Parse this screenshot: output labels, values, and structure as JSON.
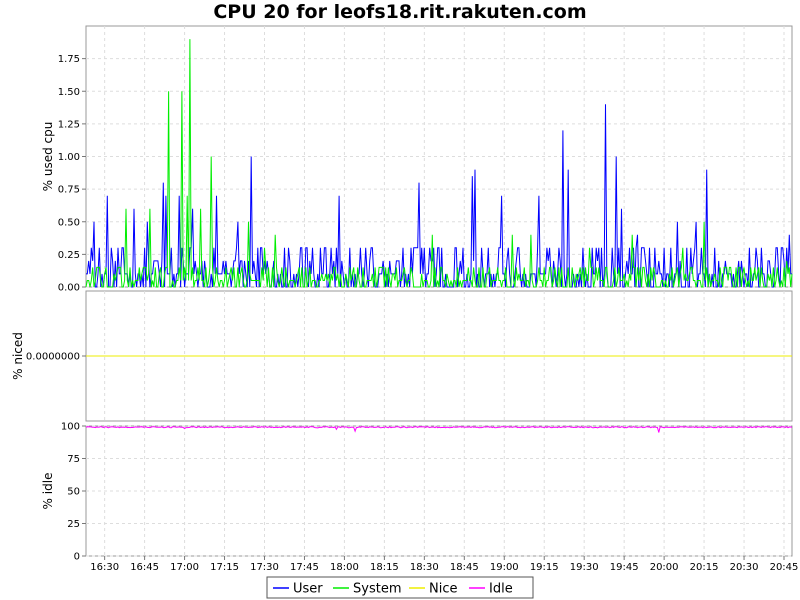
{
  "chart_data": {
    "type": "line",
    "title": "CPU 20 for leofs18.rit.rakuten.com",
    "x_range": [
      "16:23",
      "20:48"
    ],
    "x_ticks": [
      "16:30",
      "16:45",
      "17:00",
      "17:15",
      "17:30",
      "17:45",
      "18:00",
      "18:15",
      "18:30",
      "18:45",
      "19:00",
      "19:15",
      "19:30",
      "19:45",
      "20:00",
      "20:15",
      "20:30",
      "20:45"
    ],
    "grid": true,
    "legend_position": "bottom-center",
    "legend": [
      {
        "name": "User",
        "color": "#0000ff"
      },
      {
        "name": "System",
        "color": "#00ee00"
      },
      {
        "name": "Nice",
        "color": "#eeee00"
      },
      {
        "name": "Idle",
        "color": "#ff00ff"
      }
    ],
    "panels": [
      {
        "ylabel": "% used cpu",
        "ylim": [
          0,
          2.0
        ],
        "y_ticks": [
          "0.00",
          "0.25",
          "0.50",
          "0.75",
          "1.00",
          "1.25",
          "1.50",
          "1.75"
        ],
        "series": [
          {
            "name": "User",
            "color": "#0000ff",
            "baseline": 0.1,
            "peaks": [
              {
                "t": "16:24",
                "v": 0.2
              },
              {
                "t": "16:26",
                "v": 0.5
              },
              {
                "t": "16:31",
                "v": 0.7
              },
              {
                "t": "16:41",
                "v": 0.6
              },
              {
                "t": "16:46",
                "v": 0.5
              },
              {
                "t": "16:52",
                "v": 0.8
              },
              {
                "t": "16:53",
                "v": 0.7
              },
              {
                "t": "16:58",
                "v": 0.7
              },
              {
                "t": "17:03",
                "v": 0.6
              },
              {
                "t": "17:12",
                "v": 0.7
              },
              {
                "t": "17:20",
                "v": 0.5
              },
              {
                "t": "17:25",
                "v": 1.0
              },
              {
                "t": "17:58",
                "v": 0.7
              },
              {
                "t": "18:28",
                "v": 0.8
              },
              {
                "t": "18:48",
                "v": 0.85
              },
              {
                "t": "18:49",
                "v": 0.9
              },
              {
                "t": "18:59",
                "v": 0.7
              },
              {
                "t": "19:13",
                "v": 0.7
              },
              {
                "t": "19:22",
                "v": 1.2
              },
              {
                "t": "19:24",
                "v": 0.9
              },
              {
                "t": "19:38",
                "v": 1.4
              },
              {
                "t": "19:42",
                "v": 1.0
              },
              {
                "t": "19:44",
                "v": 0.6
              },
              {
                "t": "19:50",
                "v": 0.4
              },
              {
                "t": "20:05",
                "v": 0.5
              },
              {
                "t": "20:12",
                "v": 0.5
              },
              {
                "t": "20:16",
                "v": 0.9
              },
              {
                "t": "20:47",
                "v": 0.4
              }
            ]
          },
          {
            "name": "System",
            "color": "#00ee00",
            "baseline": 0.05,
            "peaks": [
              {
                "t": "16:38",
                "v": 0.6
              },
              {
                "t": "16:47",
                "v": 0.6
              },
              {
                "t": "16:54",
                "v": 1.5
              },
              {
                "t": "16:59",
                "v": 1.5
              },
              {
                "t": "17:01",
                "v": 0.7
              },
              {
                "t": "17:02",
                "v": 1.9
              },
              {
                "t": "17:06",
                "v": 0.6
              },
              {
                "t": "17:10",
                "v": 1.0
              },
              {
                "t": "17:24",
                "v": 0.5
              },
              {
                "t": "17:30",
                "v": 0.3
              },
              {
                "t": "17:34",
                "v": 0.4
              },
              {
                "t": "18:33",
                "v": 0.4
              },
              {
                "t": "19:03",
                "v": 0.4
              },
              {
                "t": "19:10",
                "v": 0.4
              },
              {
                "t": "19:32",
                "v": 0.3
              },
              {
                "t": "19:48",
                "v": 0.4
              },
              {
                "t": "20:07",
                "v": 0.3
              },
              {
                "t": "20:15",
                "v": 0.5
              },
              {
                "t": "20:46",
                "v": 0.2
              }
            ]
          }
        ]
      },
      {
        "ylabel": "% niced",
        "y_ticks": [
          "0.0000000"
        ],
        "series": [
          {
            "name": "Nice",
            "color": "#eeee00",
            "value": 0.0
          }
        ]
      },
      {
        "ylabel": "% idle",
        "ylim": [
          0,
          100
        ],
        "y_ticks": [
          "0",
          "25",
          "50",
          "75",
          "100"
        ],
        "series": [
          {
            "name": "Idle",
            "color": "#ff00ff",
            "baseline": 99.5,
            "dips": [
              {
                "t": "17:00",
                "v": 98.0
              },
              {
                "t": "17:50",
                "v": 98.5
              },
              {
                "t": "17:57",
                "v": 97.5
              },
              {
                "t": "18:04",
                "v": 96.0
              },
              {
                "t": "19:35",
                "v": 98.5
              },
              {
                "t": "19:58",
                "v": 95.0
              }
            ]
          }
        ]
      }
    ]
  }
}
